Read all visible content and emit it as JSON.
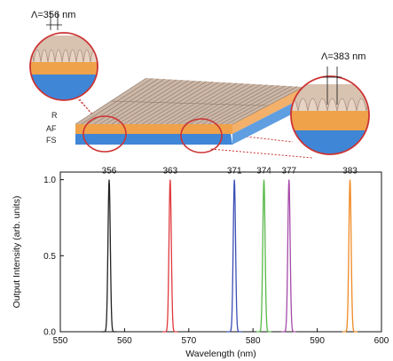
{
  "diagram": {
    "callout_left": "Λ=356 nm",
    "callout_right": "Λ=383 nm",
    "layers": {
      "resist": "R",
      "active_film": "AF",
      "substrate": "FS"
    },
    "colors": {
      "resist": "#c8a88c",
      "active_film": "#f0a24a",
      "substrate": "#3f86d6",
      "highlight_ring": "#cc3333"
    }
  },
  "chart_data": {
    "type": "line",
    "xlabel": "Wavelength (nm)",
    "ylabel": "Output Intensity (arb. units)",
    "xlim": [
      550,
      600
    ],
    "ylim": [
      0.0,
      1.05
    ],
    "xticks": [
      "550",
      "560",
      "570",
      "580",
      "590",
      "600"
    ],
    "yticks": [
      "0.0",
      "0.5",
      "1.0"
    ],
    "grid": false,
    "series": [
      {
        "label": "356",
        "peak_nm": 557.6,
        "peak_intensity": 1.0,
        "color": "#222222"
      },
      {
        "label": "363",
        "peak_nm": 567.1,
        "peak_intensity": 1.0,
        "color": "#e0393e"
      },
      {
        "label": "371",
        "peak_nm": 577.1,
        "peak_intensity": 1.0,
        "color": "#3c4fb5"
      },
      {
        "label": "374",
        "peak_nm": 581.7,
        "peak_intensity": 1.0,
        "color": "#59b84a"
      },
      {
        "label": "377",
        "peak_nm": 585.6,
        "peak_intensity": 1.0,
        "color": "#a44aa8"
      },
      {
        "label": "383",
        "peak_nm": 595.1,
        "peak_intensity": 1.0,
        "color": "#f08a24"
      }
    ]
  }
}
